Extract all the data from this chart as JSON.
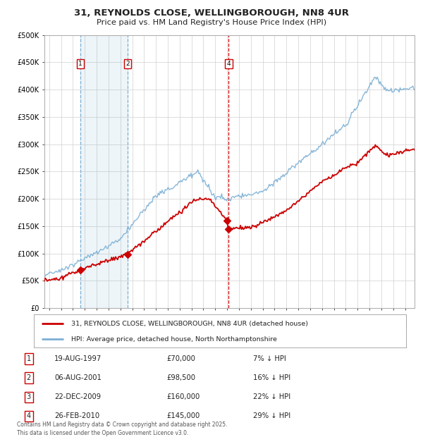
{
  "title_line1": "31, REYNOLDS CLOSE, WELLINGBOROUGH, NN8 4UR",
  "title_line2": "Price paid vs. HM Land Registry's House Price Index (HPI)",
  "hpi_color": "#7bafd4",
  "price_color": "#cc0000",
  "background_color": "#ffffff",
  "plot_bg_color": "#ffffff",
  "legend1": "31, REYNOLDS CLOSE, WELLINGBOROUGH, NN8 4UR (detached house)",
  "legend2": "HPI: Average price, detached house, North Northamptonshire",
  "transactions": [
    {
      "num": 1,
      "date": "19-AUG-1997",
      "price": 70000,
      "pct": "7%",
      "year_x": 1997.62
    },
    {
      "num": 2,
      "date": "06-AUG-2001",
      "price": 98500,
      "pct": "16%",
      "year_x": 2001.6
    },
    {
      "num": 3,
      "date": "22-DEC-2009",
      "price": 160000,
      "pct": "22%",
      "year_x": 2009.97
    },
    {
      "num": 4,
      "date": "26-FEB-2010",
      "price": 145000,
      "pct": "29%",
      "year_x": 2010.14
    }
  ],
  "footer": "Contains HM Land Registry data © Crown copyright and database right 2025.\nThis data is licensed under the Open Government Licence v3.0.",
  "ylim": [
    0,
    500000
  ],
  "xlim_start": 1994.6,
  "xlim_end": 2025.8
}
